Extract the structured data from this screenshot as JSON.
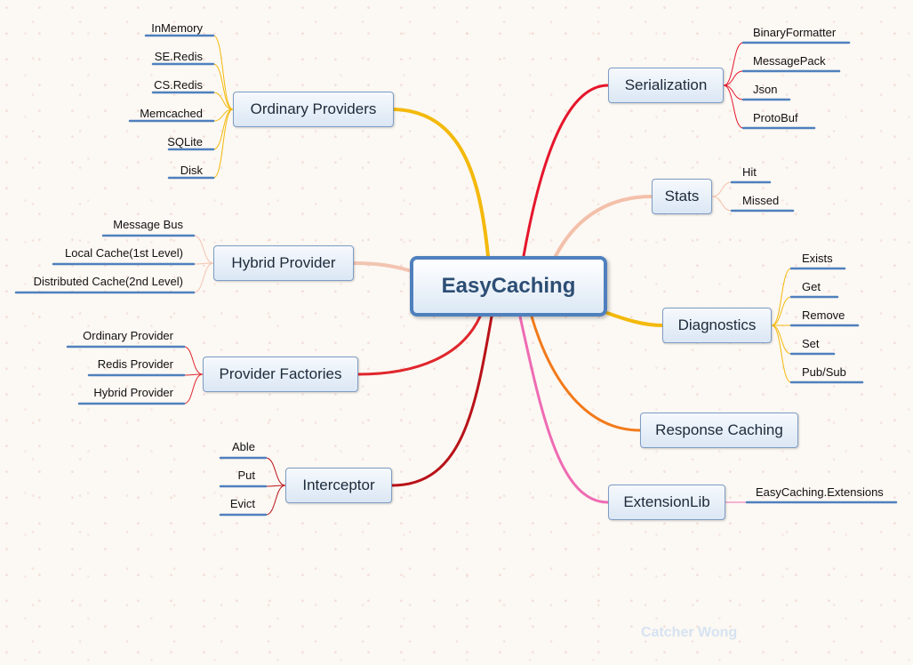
{
  "center": "EasyCaching",
  "branches": {
    "ordinary": {
      "label": "Ordinary Providers",
      "leaves": [
        "InMemory",
        "SE.Redis",
        "CS.Redis",
        "Memcached",
        "SQLite",
        "Disk"
      ]
    },
    "hybrid": {
      "label": "Hybrid Provider",
      "leaves": [
        "Message Bus",
        "Local Cache(1st Level)",
        "Distributed Cache(2nd Level)"
      ]
    },
    "factories": {
      "label": "Provider Factories",
      "leaves": [
        "Ordinary Provider",
        "Redis Provider",
        "Hybrid Provider"
      ]
    },
    "interceptor": {
      "label": "Interceptor",
      "leaves": [
        "Able",
        "Put",
        "Evict"
      ]
    },
    "serialization": {
      "label": "Serialization",
      "leaves": [
        "BinaryFormatter",
        "MessagePack",
        "Json",
        "ProtoBuf"
      ]
    },
    "stats": {
      "label": "Stats",
      "leaves": [
        "Hit",
        "Missed"
      ]
    },
    "diagnostics": {
      "label": "Diagnostics",
      "leaves": [
        "Exists",
        "Get",
        "Remove",
        "Set",
        "Pub/Sub"
      ]
    },
    "response": {
      "label": "Response Caching"
    },
    "extensionlib": {
      "label": "ExtensionLib",
      "leaves": [
        "EasyCaching.Extensions"
      ]
    }
  },
  "watermark": "Catcher Wong",
  "colors": {
    "ordinary": "#f3b90c",
    "hybrid": "#f2c4b1",
    "factories": "#e0262c",
    "interceptor": "#b81218",
    "serialization": "#e5162c",
    "stats": "#f3c0aa",
    "diagnostics": "#f3b90c",
    "response": "#f27a1a",
    "extensionlib": "#ee6bb3",
    "underline": "#4f80bd"
  }
}
